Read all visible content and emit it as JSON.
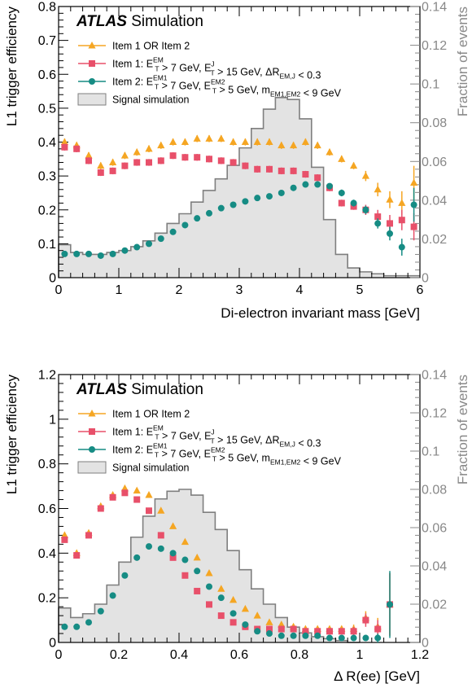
{
  "chart_data": [
    {
      "type": "scatter",
      "brand": "ATLAS",
      "brand_suffix": "Simulation",
      "xlabel": "Di-electron invariant mass [GeV]",
      "ylabel": "L1 trigger efficiency",
      "ylabel_right": "Fraction of events",
      "xlim": [
        0,
        6
      ],
      "ylim": [
        0,
        0.8
      ],
      "ylim_right": [
        0,
        0.14
      ],
      "x_ticks": [
        "0",
        "1",
        "2",
        "3",
        "4",
        "5",
        "6"
      ],
      "y_ticks": [
        "0",
        "0.1",
        "0.2",
        "0.3",
        "0.4",
        "0.5",
        "0.6",
        "0.7",
        "0.8"
      ],
      "y_right_ticks": [
        "0",
        "0.02",
        "0.04",
        "0.06",
        "0.08",
        "0.1",
        "0.12",
        "0.14"
      ],
      "legend_position": "top-left",
      "colors": {
        "or": "#f5a623",
        "item1": "#e8506a",
        "item2": "#168c84",
        "signal_fill": "#e3e3e3",
        "signal_line": "#7f7f7f"
      },
      "legend": [
        {
          "key": "or",
          "label": "Item 1 OR Item 2"
        },
        {
          "key": "item1",
          "label": "Item 1: E_T^EM > 7 GeV, E_T^J > 15 GeV, ΔR_EM,J < 0.3"
        },
        {
          "key": "item2",
          "label": "Item 2: E_T^EM1 > 7 GeV, E_T^EM2 > 5 GeV, m_EM1,EM2 < 9 GeV"
        },
        {
          "key": "signal",
          "label": "Signal simulation"
        }
      ],
      "series": [
        {
          "key": "or",
          "x": [
            0.1,
            0.3,
            0.5,
            0.7,
            0.9,
            1.1,
            1.3,
            1.5,
            1.7,
            1.9,
            2.1,
            2.3,
            2.5,
            2.7,
            2.9,
            3.1,
            3.3,
            3.5,
            3.7,
            3.9,
            4.1,
            4.3,
            4.5,
            4.7,
            4.9,
            5.1,
            5.3,
            5.5,
            5.7,
            5.9
          ],
          "y": [
            0.4,
            0.39,
            0.36,
            0.33,
            0.34,
            0.36,
            0.37,
            0.38,
            0.39,
            0.4,
            0.4,
            0.41,
            0.41,
            0.41,
            0.4,
            0.4,
            0.4,
            0.4,
            0.39,
            0.39,
            0.4,
            0.39,
            0.37,
            0.35,
            0.33,
            0.3,
            0.26,
            0.23,
            0.22,
            0.28
          ],
          "err": [
            0.01,
            0.01,
            0.01,
            0.01,
            0.01,
            0.01,
            0.01,
            0.01,
            0.01,
            0.01,
            0.01,
            0.01,
            0.01,
            0.01,
            0.01,
            0.01,
            0.01,
            0.01,
            0.01,
            0.01,
            0.01,
            0.01,
            0.01,
            0.01,
            0.01,
            0.015,
            0.02,
            0.025,
            0.035,
            0.05
          ]
        },
        {
          "key": "item1",
          "x": [
            0.1,
            0.3,
            0.5,
            0.7,
            0.9,
            1.1,
            1.3,
            1.5,
            1.7,
            1.9,
            2.1,
            2.3,
            2.5,
            2.7,
            2.9,
            3.1,
            3.3,
            3.5,
            3.7,
            3.9,
            4.1,
            4.3,
            4.5,
            4.7,
            4.9,
            5.1,
            5.3,
            5.5,
            5.7,
            5.9
          ],
          "y": [
            0.385,
            0.38,
            0.345,
            0.31,
            0.315,
            0.33,
            0.34,
            0.34,
            0.345,
            0.36,
            0.355,
            0.355,
            0.35,
            0.345,
            0.34,
            0.33,
            0.32,
            0.32,
            0.315,
            0.315,
            0.305,
            0.295,
            0.265,
            0.22,
            0.21,
            0.2,
            0.18,
            0.16,
            0.17,
            0.15
          ],
          "err": [
            0.01,
            0.01,
            0.01,
            0.01,
            0.01,
            0.01,
            0.01,
            0.01,
            0.01,
            0.01,
            0.01,
            0.01,
            0.01,
            0.01,
            0.01,
            0.01,
            0.01,
            0.01,
            0.01,
            0.01,
            0.01,
            0.01,
            0.01,
            0.01,
            0.01,
            0.015,
            0.02,
            0.025,
            0.03,
            0.04
          ]
        },
        {
          "key": "item2",
          "x": [
            0.1,
            0.3,
            0.5,
            0.7,
            0.9,
            1.1,
            1.3,
            1.5,
            1.7,
            1.9,
            2.1,
            2.3,
            2.5,
            2.7,
            2.9,
            3.1,
            3.3,
            3.5,
            3.7,
            3.9,
            4.1,
            4.3,
            4.5,
            4.7,
            4.9,
            5.1,
            5.3,
            5.5,
            5.7,
            5.9
          ],
          "y": [
            0.07,
            0.07,
            0.07,
            0.065,
            0.07,
            0.08,
            0.09,
            0.1,
            0.115,
            0.135,
            0.155,
            0.175,
            0.19,
            0.205,
            0.215,
            0.225,
            0.235,
            0.24,
            0.25,
            0.265,
            0.275,
            0.275,
            0.27,
            0.25,
            0.22,
            0.2,
            0.16,
            0.13,
            0.09,
            0.215
          ],
          "err": [
            0.005,
            0.005,
            0.005,
            0.005,
            0.005,
            0.005,
            0.005,
            0.005,
            0.005,
            0.005,
            0.005,
            0.005,
            0.005,
            0.005,
            0.005,
            0.005,
            0.005,
            0.005,
            0.005,
            0.005,
            0.005,
            0.005,
            0.005,
            0.01,
            0.01,
            0.012,
            0.015,
            0.02,
            0.025,
            0.05
          ]
        }
      ],
      "signal_hist": {
        "bin_edges": [
          0,
          0.2,
          0.4,
          0.6,
          0.8,
          1.0,
          1.2,
          1.4,
          1.6,
          1.8,
          2.0,
          2.2,
          2.4,
          2.6,
          2.8,
          3.0,
          3.2,
          3.4,
          3.6,
          3.8,
          4.0,
          4.2,
          4.4,
          4.6,
          4.8,
          5.0,
          5.2,
          5.4,
          5.6,
          5.8,
          6.0
        ],
        "values": [
          0.017,
          0.013,
          0.012,
          0.012,
          0.013,
          0.014,
          0.016,
          0.019,
          0.023,
          0.028,
          0.033,
          0.039,
          0.045,
          0.051,
          0.058,
          0.067,
          0.077,
          0.087,
          0.093,
          0.092,
          0.082,
          0.057,
          0.03,
          0.012,
          0.005,
          0.003,
          0.002,
          0.001,
          0.001,
          0.001
        ]
      }
    },
    {
      "type": "scatter",
      "brand": "ATLAS",
      "brand_suffix": "Simulation",
      "xlabel": "Δ R(ee) [GeV]",
      "ylabel": "L1 trigger efficiency",
      "ylabel_right": "Fraction of events",
      "xlim": [
        0,
        1.2
      ],
      "ylim": [
        0,
        1.2
      ],
      "ylim_right": [
        0,
        0.14
      ],
      "x_ticks": [
        "0",
        "0.2",
        "0.4",
        "0.6",
        "0.8",
        "1",
        "1.2"
      ],
      "y_ticks": [
        "0",
        "0.2",
        "0.4",
        "0.6",
        "0.8",
        "1",
        "1.2"
      ],
      "y_right_ticks": [
        "0",
        "0.02",
        "0.04",
        "0.06",
        "0.08",
        "0.1",
        "0.12",
        "0.14"
      ],
      "legend_position": "top-left",
      "colors": {
        "or": "#f5a623",
        "item1": "#e8506a",
        "item2": "#168c84",
        "signal_fill": "#e3e3e3",
        "signal_line": "#7f7f7f"
      },
      "legend": [
        {
          "key": "or",
          "label": "Item 1 OR Item 2"
        },
        {
          "key": "item1",
          "label": "Item 1: E_T^EM > 7 GeV, E_T^J > 15 GeV, ΔR_EM,J < 0.3"
        },
        {
          "key": "item2",
          "label": "Item 2: E_T^EM1 > 7 GeV, E_T^EM2 > 5 GeV, m_EM1,EM2 < 9 GeV"
        },
        {
          "key": "signal",
          "label": "Signal simulation"
        }
      ],
      "series": [
        {
          "key": "or",
          "x": [
            0.02,
            0.06,
            0.1,
            0.14,
            0.18,
            0.22,
            0.26,
            0.3,
            0.34,
            0.38,
            0.42,
            0.46,
            0.5,
            0.54,
            0.58,
            0.62,
            0.66,
            0.7,
            0.74,
            0.78,
            0.82,
            0.86,
            0.9,
            0.94,
            0.98,
            1.02,
            1.06,
            1.1
          ],
          "y": [
            0.48,
            0.4,
            0.49,
            0.61,
            0.66,
            0.69,
            0.68,
            0.66,
            0.59,
            0.52,
            0.45,
            0.38,
            0.31,
            0.24,
            0.19,
            0.15,
            0.12,
            0.09,
            0.08,
            0.07,
            0.06,
            0.06,
            0.06,
            0.06,
            0.06,
            0.11,
            0.07,
            0.17
          ],
          "err": [
            0.01,
            0.01,
            0.01,
            0.01,
            0.01,
            0.01,
            0.01,
            0.01,
            0.01,
            0.01,
            0.01,
            0.01,
            0.01,
            0.01,
            0.01,
            0.01,
            0.01,
            0.01,
            0.01,
            0.01,
            0.01,
            0.01,
            0.01,
            0.01,
            0.02,
            0.03,
            0.04,
            0.14
          ]
        },
        {
          "key": "item1",
          "x": [
            0.02,
            0.06,
            0.1,
            0.14,
            0.18,
            0.22,
            0.26,
            0.3,
            0.34,
            0.38,
            0.42,
            0.46,
            0.5,
            0.54,
            0.58,
            0.62,
            0.66,
            0.7,
            0.74,
            0.78,
            0.82,
            0.86,
            0.9,
            0.94,
            0.98,
            1.02,
            1.06,
            1.1
          ],
          "y": [
            0.46,
            0.39,
            0.48,
            0.6,
            0.65,
            0.67,
            0.64,
            0.59,
            0.48,
            0.38,
            0.3,
            0.23,
            0.17,
            0.12,
            0.09,
            0.07,
            0.06,
            0.06,
            0.06,
            0.06,
            0.05,
            0.05,
            0.05,
            0.05,
            0.05,
            0.1,
            0.06,
            0.17
          ],
          "err": [
            0.01,
            0.01,
            0.01,
            0.01,
            0.01,
            0.01,
            0.01,
            0.01,
            0.01,
            0.01,
            0.01,
            0.01,
            0.01,
            0.01,
            0.01,
            0.01,
            0.01,
            0.01,
            0.01,
            0.01,
            0.01,
            0.01,
            0.01,
            0.01,
            0.02,
            0.03,
            0.04,
            0.14
          ]
        },
        {
          "key": "item2",
          "x": [
            0.02,
            0.06,
            0.1,
            0.14,
            0.18,
            0.22,
            0.26,
            0.3,
            0.34,
            0.38,
            0.42,
            0.46,
            0.5,
            0.54,
            0.58,
            0.62,
            0.66,
            0.7,
            0.74,
            0.78,
            0.82,
            0.86,
            0.9,
            0.94,
            0.98,
            1.02,
            1.06,
            1.1
          ],
          "y": [
            0.07,
            0.07,
            0.09,
            0.14,
            0.21,
            0.3,
            0.38,
            0.43,
            0.42,
            0.4,
            0.37,
            0.32,
            0.25,
            0.2,
            0.13,
            0.08,
            0.05,
            0.04,
            0.03,
            0.03,
            0.03,
            0.03,
            0.02,
            0.02,
            0.02,
            0.02,
            0.02,
            0.17
          ],
          "err": [
            0.01,
            0.01,
            0.01,
            0.01,
            0.01,
            0.01,
            0.01,
            0.01,
            0.01,
            0.01,
            0.01,
            0.01,
            0.01,
            0.01,
            0.01,
            0.01,
            0.01,
            0.01,
            0.01,
            0.01,
            0.01,
            0.01,
            0.01,
            0.01,
            0.01,
            0.01,
            0.02,
            0.15
          ]
        }
      ],
      "signal_hist": {
        "bin_edges": [
          0,
          0.04,
          0.08,
          0.12,
          0.16,
          0.2,
          0.24,
          0.28,
          0.32,
          0.36,
          0.4,
          0.44,
          0.48,
          0.52,
          0.56,
          0.6,
          0.64,
          0.68,
          0.72,
          0.76,
          0.8,
          0.84,
          0.88,
          0.92,
          0.96,
          1.0
        ],
        "values": [
          0.018,
          0.013,
          0.015,
          0.02,
          0.03,
          0.042,
          0.055,
          0.066,
          0.075,
          0.079,
          0.08,
          0.077,
          0.068,
          0.059,
          0.048,
          0.038,
          0.028,
          0.02,
          0.013,
          0.008,
          0.005,
          0.003,
          0.002,
          0.001,
          0.0
        ]
      }
    }
  ]
}
